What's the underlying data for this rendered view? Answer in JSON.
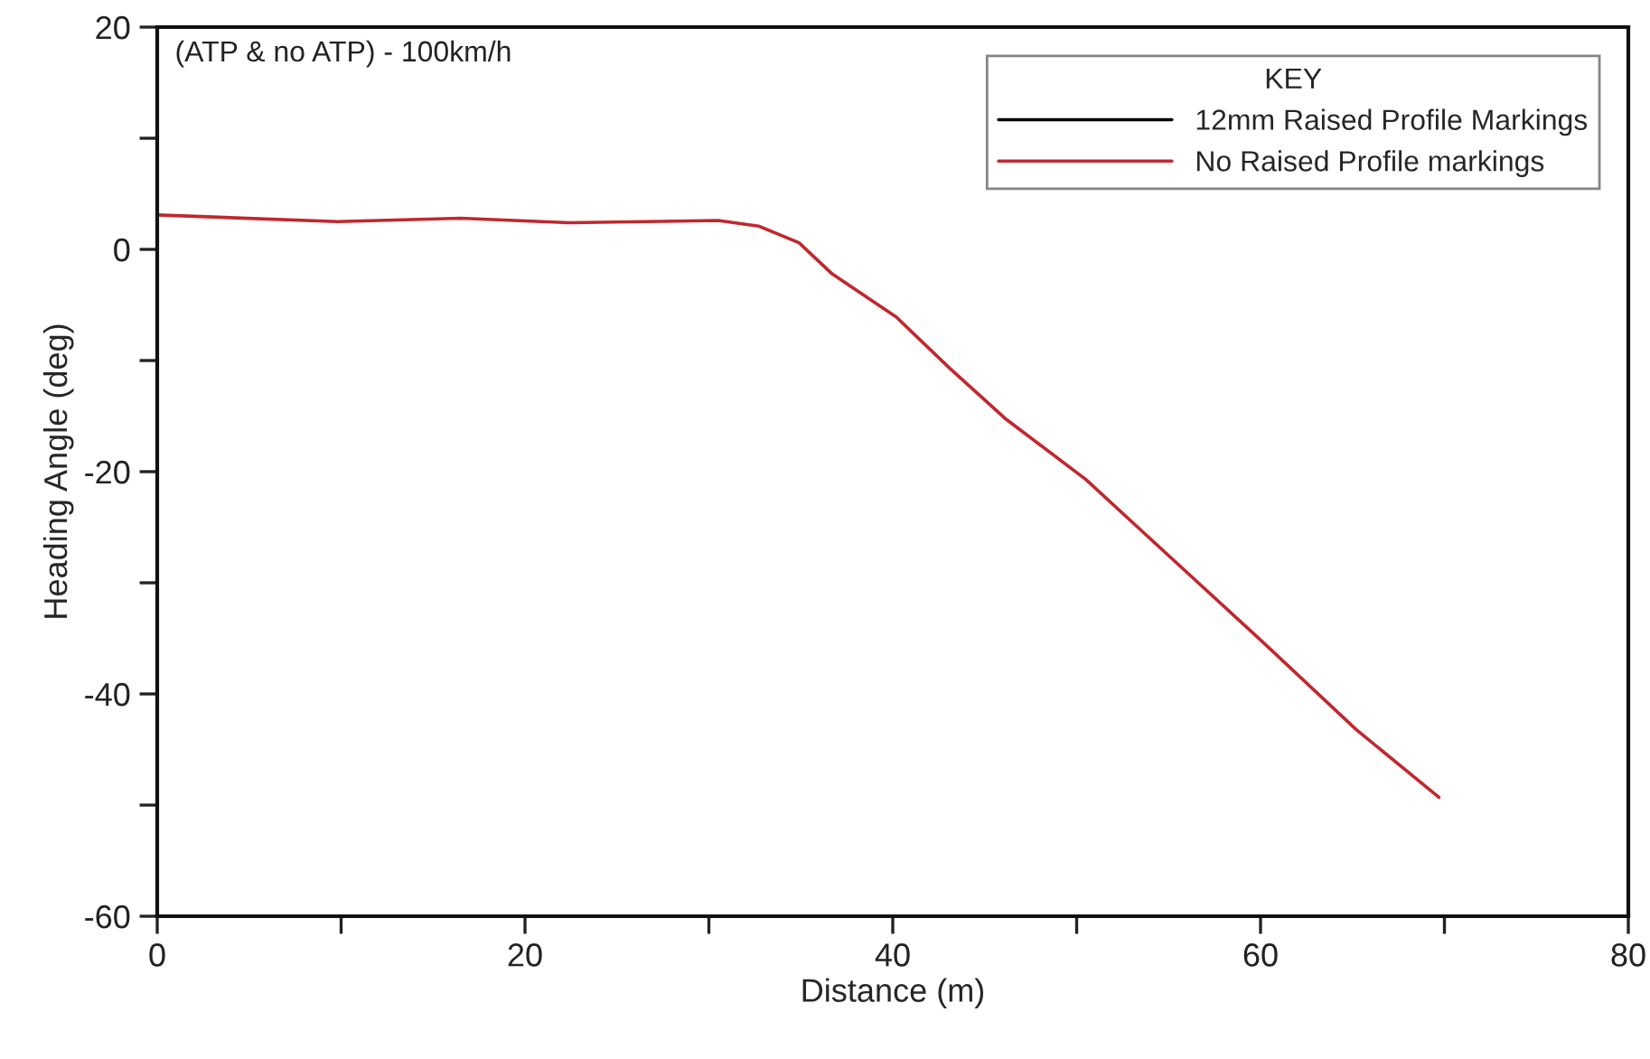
{
  "chart_data": {
    "type": "line",
    "title": "(ATP & no ATP) - 100km/h",
    "xlabel": "Distance (m)",
    "ylabel": "Heading Angle (deg)",
    "legend_title": "KEY",
    "legend": "top right",
    "grid": false,
    "line_style": "solid",
    "x": [
      0,
      9.8,
      16.5,
      22.4,
      30.5,
      32.7,
      34.9,
      36.7,
      40.2,
      43.1,
      46.1,
      50.5,
      54.9,
      60.1,
      65.2,
      69.7
    ],
    "series": [
      {
        "name": "12mm Raised Profile Markings",
        "color": "#000000",
        "values": [
          null,
          null,
          null,
          null,
          null,
          null,
          null,
          null,
          null,
          null,
          null,
          null,
          null,
          null,
          null,
          null
        ]
      },
      {
        "name": "No Raised Profile markings",
        "color": "#c1272d",
        "values": [
          3.1,
          2.5,
          2.8,
          2.4,
          2.6,
          2.1,
          0.6,
          -2.2,
          -6.1,
          -10.7,
          -15.2,
          -20.7,
          -27.4,
          -35.3,
          -43.2,
          -49.3
        ]
      }
    ],
    "xlim": [
      0,
      80
    ],
    "ylim": [
      -60,
      20
    ],
    "xticks": [
      0,
      {
        "value": 10,
        "label": null
      },
      20,
      {
        "value": 30,
        "label": null
      },
      40,
      {
        "value": 50,
        "label": null
      },
      60,
      {
        "value": 70,
        "label": null
      },
      80
    ],
    "yticks": [
      -60,
      {
        "value": -50,
        "label": null
      },
      -40,
      {
        "value": -30,
        "label": null
      },
      -20,
      {
        "value": -10,
        "label": null
      },
      0,
      {
        "value": 10,
        "label": null
      },
      20
    ]
  }
}
